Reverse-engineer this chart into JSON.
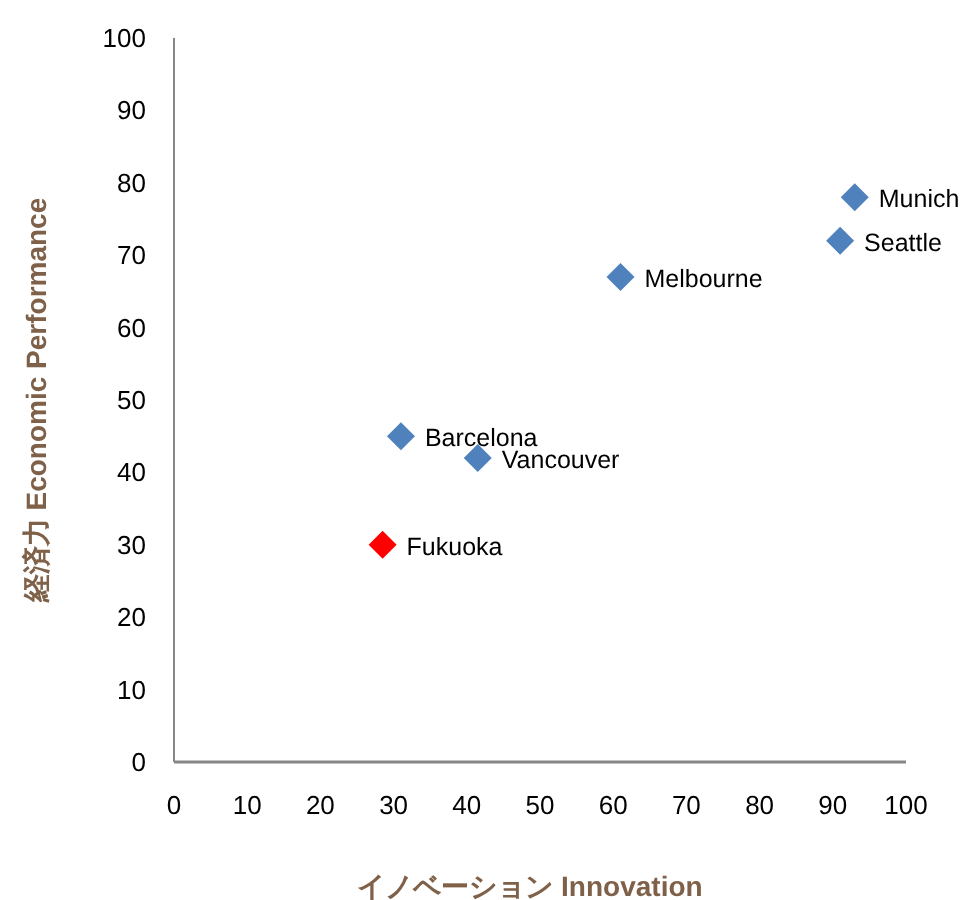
{
  "chart_data": {
    "type": "scatter",
    "xlabel": "イノベーション Innovation",
    "ylabel": "経済力 Economic Performance",
    "x": [
      93,
      91,
      61,
      31,
      41.5,
      28.5
    ],
    "values": [
      78,
      72,
      67,
      45,
      42,
      30
    ],
    "colors": [
      "#4f81bd",
      "#4f81bd",
      "#4f81bd",
      "#4f81bd",
      "#4f81bd",
      "#ff0000"
    ],
    "marker": "diamond",
    "xlim": [
      0,
      100
    ],
    "ylim": [
      0,
      100
    ],
    "xticks": [
      0,
      10,
      20,
      30,
      40,
      50,
      60,
      70,
      80,
      90,
      100
    ],
    "yticks": [
      0,
      10,
      20,
      30,
      40,
      50,
      60,
      70,
      80,
      90,
      100
    ],
    "annotations": [
      {
        "text": "Munich",
        "x": 93,
        "y": 78
      },
      {
        "text": "Seattle",
        "x": 91,
        "y": 72
      },
      {
        "text": "Melbourne",
        "x": 61,
        "y": 67
      },
      {
        "text": "Barcelona",
        "x": 31,
        "y": 45
      },
      {
        "text": "Vancouver",
        "x": 41.5,
        "y": 42
      },
      {
        "text": "Fukuoka",
        "x": 28.5,
        "y": 30
      }
    ]
  }
}
